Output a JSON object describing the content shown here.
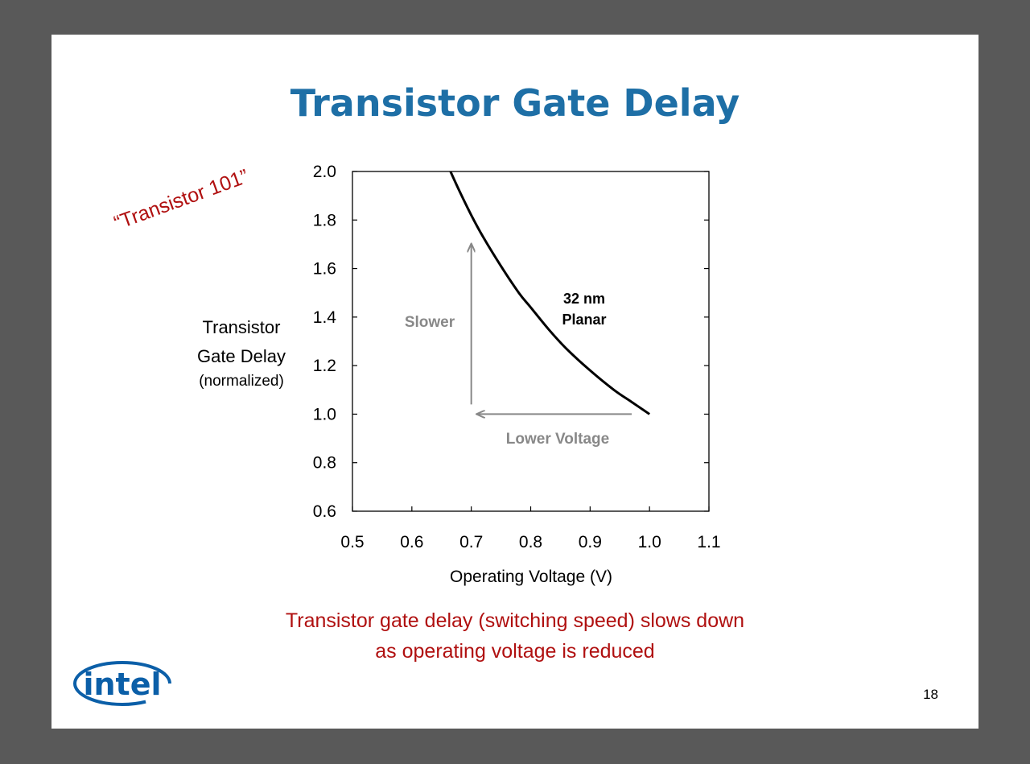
{
  "slide": {
    "title": "Transistor Gate Delay",
    "stamp": "“Transistor 101”",
    "caption_line1": "Transistor gate delay (switching speed) slows down",
    "caption_line2": "as operating voltage is reduced",
    "logo_text": "intel",
    "page_number": "18",
    "colors": {
      "background": "#595959",
      "title": "#1e6fa6",
      "accent_red": "#b01010",
      "annotation_gray": "#888888",
      "logo_blue": "#0b5fa8"
    }
  },
  "chart_data": {
    "type": "line",
    "title": "",
    "xlabel": "Operating Voltage (V)",
    "ylabel_lines": [
      "Transistor",
      "Gate Delay",
      "(normalized)"
    ],
    "xlim": [
      0.5,
      1.1
    ],
    "ylim": [
      0.6,
      2.0
    ],
    "x_ticks": [
      "0.5",
      "0.6",
      "0.7",
      "0.8",
      "0.9",
      "1.0",
      "1.1"
    ],
    "y_ticks": [
      "0.6",
      "0.8",
      "1.0",
      "1.2",
      "1.4",
      "1.6",
      "1.8",
      "2.0"
    ],
    "grid": false,
    "series": [
      {
        "name": "32 nm Planar",
        "x": [
          0.665,
          0.68,
          0.7,
          0.72,
          0.75,
          0.78,
          0.8,
          0.83,
          0.86,
          0.9,
          0.94,
          0.97,
          1.0
        ],
        "y": [
          2.0,
          1.92,
          1.82,
          1.73,
          1.61,
          1.5,
          1.44,
          1.35,
          1.27,
          1.18,
          1.1,
          1.05,
          1.0
        ]
      }
    ],
    "annotations": {
      "series_label_line1": "32 nm",
      "series_label_line2": "Planar",
      "slower_label": "Slower",
      "lower_voltage_label": "Lower Voltage",
      "slower_arrow": {
        "x": 0.7,
        "y_from": 1.04,
        "y_to": 1.7
      },
      "lower_voltage_arrow": {
        "y": 1.0,
        "x_from": 0.97,
        "x_to": 0.71
      }
    }
  }
}
